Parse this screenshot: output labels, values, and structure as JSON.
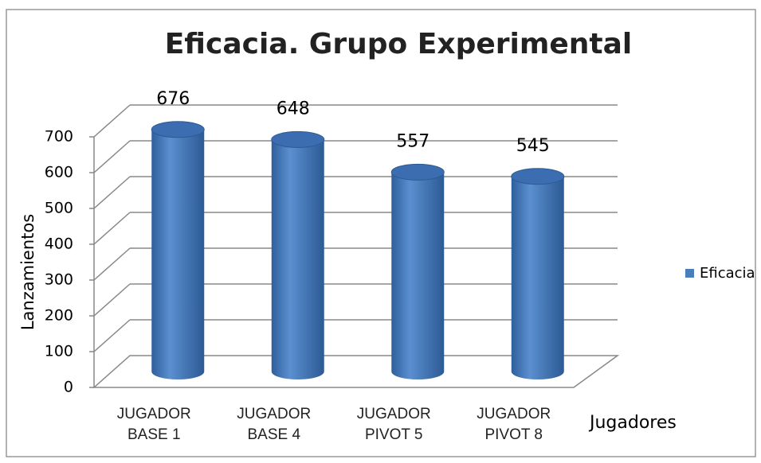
{
  "chart_data": {
    "type": "bar3d",
    "title": "Eficacia. Grupo Experimental",
    "categories": [
      "JUGADOR BASE 1",
      "JUGADOR BASE 4",
      "JUGADOR PIVOT 5",
      "JUGADOR PIVOT 8"
    ],
    "series": [
      {
        "name": "Eficacia",
        "color": "#4a7ebb",
        "values": [
          676,
          648,
          557,
          545
        ]
      }
    ],
    "ylim": [
      0,
      700
    ],
    "yticks": [
      0,
      100,
      200,
      300,
      400,
      500,
      600,
      700
    ],
    "ylabel": "Lanzamientos",
    "xlabel": "Jugadores",
    "grid": true,
    "legend": "right"
  }
}
